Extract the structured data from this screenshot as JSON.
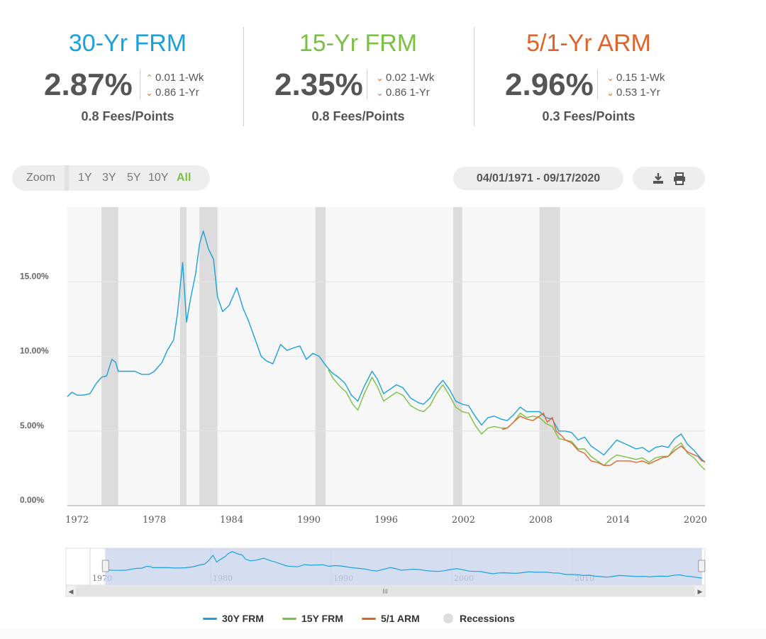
{
  "rates": [
    {
      "title": "30-Yr FRM",
      "color": "#1aa1dc",
      "value": "2.87%",
      "wk_dir": "up",
      "wk_change": "0.01 1-Wk",
      "yr_dir": "down",
      "yr_change": "0.86 1-Yr",
      "fees": "0.8 Fees/Points"
    },
    {
      "title": "15-Yr FRM",
      "color": "#7ac143",
      "value": "2.35%",
      "wk_dir": "down",
      "wk_change": "0.02 1-Wk",
      "yr_dir": "down",
      "yr_change": "0.86 1-Yr",
      "fees": "0.8 Fees/Points"
    },
    {
      "title": "5/1-Yr ARM",
      "color": "#e0642a",
      "value": "2.96%",
      "wk_dir": "down",
      "wk_change": "0.15 1-Wk",
      "yr_dir": "down",
      "yr_change": "0.53 1-Yr",
      "fees": "0.3 Fees/Points"
    }
  ],
  "toolbar": {
    "zoom_label": "Zoom",
    "zoom_options": [
      "1Y",
      "3Y",
      "5Y",
      "10Y",
      "All"
    ],
    "active_zoom": "All",
    "date_range": "04/01/1971 - 09/17/2020",
    "download_icon": "download-icon",
    "print_icon": "print-icon"
  },
  "chart_data": {
    "type": "line",
    "title": "",
    "xlabel": "",
    "ylabel": "",
    "xlim": [
      1971.25,
      2020.75
    ],
    "ylim": [
      0,
      20
    ],
    "grid": true,
    "yticks": [
      0,
      5,
      10,
      15
    ],
    "ytick_labels": [
      "0.00%",
      "5.00%",
      "10.00%",
      "15.00%"
    ],
    "xticks": [
      1972,
      1978,
      1984,
      1990,
      1996,
      2002,
      2008,
      2014,
      2020
    ],
    "xtick_labels": [
      "1972",
      "1978",
      "1984",
      "1990",
      "1996",
      "2002",
      "2008",
      "2014",
      "2020"
    ],
    "recessions": [
      [
        1973.9,
        1975.2
      ],
      [
        1980.0,
        1980.5
      ],
      [
        1981.5,
        1982.9
      ],
      [
        1990.5,
        1991.3
      ],
      [
        2001.2,
        2001.9
      ],
      [
        2007.9,
        2009.5
      ]
    ],
    "series": [
      {
        "name": "30Y FRM",
        "color": "#1aa1dc",
        "points": [
          [
            1971.25,
            7.3
          ],
          [
            1971.6,
            7.6
          ],
          [
            1972,
            7.4
          ],
          [
            1972.5,
            7.4
          ],
          [
            1973,
            7.5
          ],
          [
            1973.5,
            8.2
          ],
          [
            1973.9,
            8.6
          ],
          [
            1974.3,
            8.7
          ],
          [
            1974.7,
            9.8
          ],
          [
            1975,
            9.6
          ],
          [
            1975.2,
            9.0
          ],
          [
            1976,
            9.0
          ],
          [
            1976.5,
            9.0
          ],
          [
            1977,
            8.8
          ],
          [
            1977.6,
            8.8
          ],
          [
            1978,
            9.0
          ],
          [
            1978.6,
            9.6
          ],
          [
            1979,
            10.4
          ],
          [
            1979.5,
            11.1
          ],
          [
            1979.8,
            12.9
          ],
          [
            1980.2,
            16.3
          ],
          [
            1980.5,
            12.3
          ],
          [
            1980.8,
            13.8
          ],
          [
            1981.2,
            15.5
          ],
          [
            1981.5,
            17.5
          ],
          [
            1981.8,
            18.4
          ],
          [
            1982.2,
            17.2
          ],
          [
            1982.6,
            16.5
          ],
          [
            1982.9,
            14.0
          ],
          [
            1983.3,
            13.0
          ],
          [
            1983.8,
            13.4
          ],
          [
            1984.4,
            14.6
          ],
          [
            1984.9,
            13.2
          ],
          [
            1985.3,
            12.4
          ],
          [
            1985.8,
            11.2
          ],
          [
            1986.3,
            10.0
          ],
          [
            1986.7,
            9.7
          ],
          [
            1987.2,
            9.5
          ],
          [
            1987.8,
            10.8
          ],
          [
            1988.3,
            10.4
          ],
          [
            1988.9,
            10.6
          ],
          [
            1989.3,
            10.7
          ],
          [
            1989.8,
            9.8
          ],
          [
            1990.3,
            10.2
          ],
          [
            1990.8,
            10.0
          ],
          [
            1991.3,
            9.4
          ],
          [
            1991.8,
            8.9
          ],
          [
            1992.3,
            8.6
          ],
          [
            1992.8,
            8.2
          ],
          [
            1993.3,
            7.4
          ],
          [
            1993.8,
            7.0
          ],
          [
            1994.3,
            8.0
          ],
          [
            1994.9,
            9.0
          ],
          [
            1995.3,
            8.5
          ],
          [
            1995.8,
            7.5
          ],
          [
            1996.3,
            7.8
          ],
          [
            1996.8,
            8.1
          ],
          [
            1997.3,
            7.9
          ],
          [
            1997.9,
            7.2
          ],
          [
            1998.5,
            6.9
          ],
          [
            1998.9,
            6.8
          ],
          [
            1999.4,
            7.2
          ],
          [
            1999.9,
            7.9
          ],
          [
            2000.4,
            8.4
          ],
          [
            2000.9,
            7.8
          ],
          [
            2001.4,
            7.0
          ],
          [
            2001.9,
            6.8
          ],
          [
            2002.4,
            6.7
          ],
          [
            2002.9,
            6.0
          ],
          [
            2003.4,
            5.4
          ],
          [
            2003.9,
            5.9
          ],
          [
            2004.4,
            6.0
          ],
          [
            2004.9,
            5.8
          ],
          [
            2005.4,
            5.7
          ],
          [
            2005.9,
            6.1
          ],
          [
            2006.4,
            6.6
          ],
          [
            2006.9,
            6.3
          ],
          [
            2007.4,
            6.3
          ],
          [
            2007.9,
            6.3
          ],
          [
            2008.4,
            5.9
          ],
          [
            2008.9,
            5.8
          ],
          [
            2009.4,
            5.0
          ],
          [
            2009.9,
            5.0
          ],
          [
            2010.4,
            4.9
          ],
          [
            2010.9,
            4.4
          ],
          [
            2011.4,
            4.6
          ],
          [
            2011.9,
            4.0
          ],
          [
            2012.4,
            3.7
          ],
          [
            2012.9,
            3.4
          ],
          [
            2013.4,
            3.9
          ],
          [
            2013.9,
            4.4
          ],
          [
            2014.4,
            4.2
          ],
          [
            2014.9,
            4.0
          ],
          [
            2015.4,
            3.8
          ],
          [
            2015.9,
            3.9
          ],
          [
            2016.4,
            3.6
          ],
          [
            2016.9,
            3.9
          ],
          [
            2017.4,
            4.0
          ],
          [
            2017.9,
            3.9
          ],
          [
            2018.4,
            4.5
          ],
          [
            2018.9,
            4.8
          ],
          [
            2019.4,
            4.1
          ],
          [
            2019.9,
            3.7
          ],
          [
            2020.2,
            3.4
          ],
          [
            2020.5,
            3.1
          ],
          [
            2020.75,
            2.9
          ]
        ]
      },
      {
        "name": "15Y FRM",
        "color": "#7ac143",
        "points": [
          [
            1991.5,
            9.1
          ],
          [
            1991.9,
            8.5
          ],
          [
            1992.4,
            8.0
          ],
          [
            1992.9,
            7.6
          ],
          [
            1993.4,
            6.8
          ],
          [
            1993.8,
            6.4
          ],
          [
            1994.3,
            7.5
          ],
          [
            1994.9,
            8.6
          ],
          [
            1995.3,
            8.0
          ],
          [
            1995.8,
            7.0
          ],
          [
            1996.3,
            7.3
          ],
          [
            1996.8,
            7.6
          ],
          [
            1997.3,
            7.4
          ],
          [
            1997.9,
            6.7
          ],
          [
            1998.5,
            6.4
          ],
          [
            1998.9,
            6.3
          ],
          [
            1999.4,
            6.7
          ],
          [
            1999.9,
            7.5
          ],
          [
            2000.4,
            8.1
          ],
          [
            2000.9,
            7.4
          ],
          [
            2001.4,
            6.6
          ],
          [
            2001.9,
            6.3
          ],
          [
            2002.4,
            6.2
          ],
          [
            2002.9,
            5.4
          ],
          [
            2003.4,
            4.8
          ],
          [
            2003.9,
            5.2
          ],
          [
            2004.4,
            5.3
          ],
          [
            2004.9,
            5.2
          ],
          [
            2005.4,
            5.2
          ],
          [
            2005.9,
            5.6
          ],
          [
            2006.4,
            6.2
          ],
          [
            2006.9,
            5.9
          ],
          [
            2007.4,
            6.0
          ],
          [
            2007.9,
            5.9
          ],
          [
            2008.4,
            5.5
          ],
          [
            2008.9,
            5.3
          ],
          [
            2009.4,
            4.5
          ],
          [
            2009.9,
            4.4
          ],
          [
            2010.4,
            4.3
          ],
          [
            2010.9,
            3.8
          ],
          [
            2011.4,
            3.8
          ],
          [
            2011.9,
            3.3
          ],
          [
            2012.4,
            3.0
          ],
          [
            2012.9,
            2.7
          ],
          [
            2013.4,
            3.1
          ],
          [
            2013.9,
            3.4
          ],
          [
            2014.4,
            3.3
          ],
          [
            2014.9,
            3.2
          ],
          [
            2015.4,
            3.1
          ],
          [
            2015.9,
            3.2
          ],
          [
            2016.4,
            2.9
          ],
          [
            2016.9,
            3.2
          ],
          [
            2017.4,
            3.3
          ],
          [
            2017.9,
            3.3
          ],
          [
            2018.4,
            3.9
          ],
          [
            2018.9,
            4.2
          ],
          [
            2019.4,
            3.5
          ],
          [
            2019.9,
            3.2
          ],
          [
            2020.2,
            2.9
          ],
          [
            2020.5,
            2.6
          ],
          [
            2020.75,
            2.4
          ]
        ]
      },
      {
        "name": "5/1 ARM",
        "color": "#e0642a",
        "points": [
          [
            2005.0,
            5.1
          ],
          [
            2005.4,
            5.2
          ],
          [
            2005.9,
            5.6
          ],
          [
            2006.4,
            6.0
          ],
          [
            2006.9,
            5.8
          ],
          [
            2007.4,
            5.7
          ],
          [
            2007.9,
            6.0
          ],
          [
            2008.2,
            6.2
          ],
          [
            2008.5,
            5.6
          ],
          [
            2008.9,
            5.9
          ],
          [
            2009.2,
            5.0
          ],
          [
            2009.6,
            4.7
          ],
          [
            2009.9,
            4.4
          ],
          [
            2010.4,
            4.2
          ],
          [
            2010.9,
            3.7
          ],
          [
            2011.4,
            3.5
          ],
          [
            2011.9,
            3.0
          ],
          [
            2012.4,
            2.9
          ],
          [
            2012.9,
            2.7
          ],
          [
            2013.4,
            2.7
          ],
          [
            2013.9,
            3.0
          ],
          [
            2014.4,
            3.0
          ],
          [
            2014.9,
            3.0
          ],
          [
            2015.4,
            2.9
          ],
          [
            2015.9,
            3.0
          ],
          [
            2016.4,
            2.8
          ],
          [
            2016.9,
            3.0
          ],
          [
            2017.4,
            3.2
          ],
          [
            2017.9,
            3.3
          ],
          [
            2018.4,
            3.7
          ],
          [
            2018.9,
            4.0
          ],
          [
            2019.4,
            3.6
          ],
          [
            2019.9,
            3.4
          ],
          [
            2020.2,
            3.3
          ],
          [
            2020.5,
            3.0
          ],
          [
            2020.75,
            2.96
          ]
        ]
      }
    ],
    "navigator": {
      "series": "30Y FRM",
      "xlim": [
        1968,
        2021
      ],
      "ticks": [
        1970,
        1980,
        1990,
        2000,
        2010
      ],
      "tick_labels": [
        "1970",
        "1980",
        "1990",
        "2000",
        "2010"
      ],
      "selected_range": [
        1971.25,
        2020.75
      ],
      "scroll_glyph": "III"
    }
  },
  "legend": [
    {
      "label": "30Y FRM",
      "color": "#1aa1dc",
      "kind": "line"
    },
    {
      "label": "15Y FRM",
      "color": "#7ac143",
      "kind": "line"
    },
    {
      "label": "5/1 ARM",
      "color": "#e0642a",
      "kind": "line"
    },
    {
      "label": "Recessions",
      "color": "#dddddd",
      "kind": "dot"
    }
  ]
}
